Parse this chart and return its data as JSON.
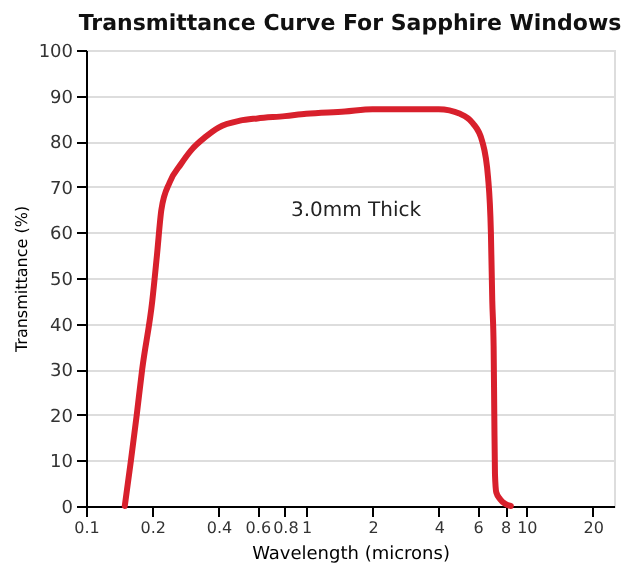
{
  "chart_data": {
    "type": "line",
    "title": "Transmittance Curve For Sapphire Windows",
    "xlabel": "Wavelength (microns)",
    "ylabel": "Transmittance (%)",
    "log": "x",
    "xlim": [
      0.1,
      25
    ],
    "xticks": [
      0.1,
      0.2,
      0.4,
      0.6,
      0.8,
      1,
      2,
      4,
      6,
      8,
      10,
      20
    ],
    "ylim": [
      0,
      100
    ],
    "yticks": [
      0,
      10,
      20,
      30,
      40,
      50,
      60,
      70,
      80,
      90,
      100
    ],
    "grid": "y",
    "marker": "none",
    "line_style": "solid",
    "annotations": [
      "3.0mm Thick"
    ],
    "series": [
      {
        "color": "#d8202c",
        "x": [
          0.15,
          0.16,
          0.17,
          0.18,
          0.2,
          0.21,
          0.22,
          0.24,
          0.27,
          0.3,
          0.35,
          0.4,
          0.5,
          0.6,
          0.8,
          1,
          1.5,
          2,
          3,
          4,
          5,
          5.7,
          6.3,
          6.7,
          6.9,
          7.0,
          7.1,
          7.15,
          7.2,
          7.3,
          7.6,
          8.0,
          8.5
        ],
        "values": [
          0,
          10,
          20,
          30,
          45,
          55,
          65,
          71,
          75,
          78,
          81,
          83,
          84.5,
          85,
          85.5,
          86,
          86.5,
          87,
          87,
          87,
          86,
          84,
          80,
          72,
          60,
          45,
          35,
          20,
          7,
          3,
          1.5,
          0.5,
          0
        ]
      }
    ]
  }
}
